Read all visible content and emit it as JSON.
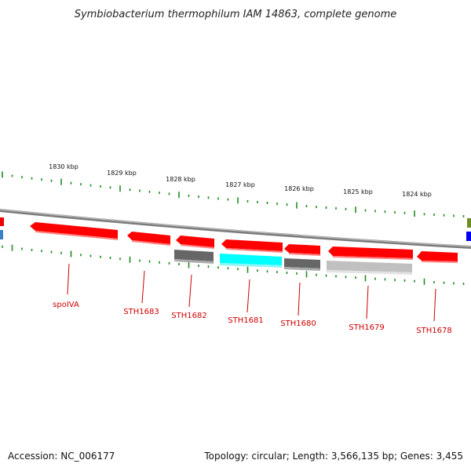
{
  "title": "Symbiobacterium thermophilum IAM 14863, complete genome",
  "footer": {
    "accession": "Accession: NC_006177",
    "topology": "Topology: circular; Length: 3,566,135 bp; Genes: 3,455"
  },
  "ruler_labels": [
    "1830 kbp",
    "1829 kbp",
    "1828 kbp",
    "1827 kbp",
    "1826 kbp",
    "1825 kbp",
    "1824 kbp"
  ],
  "genes": [
    {
      "name": "spoIVA"
    },
    {
      "name": "STH1683"
    },
    {
      "name": "STH1682"
    },
    {
      "name": "STH1681"
    },
    {
      "name": "STH1680"
    },
    {
      "name": "STH1679"
    },
    {
      "name": "STH1678"
    }
  ],
  "colors": {
    "forward_gene": "#ff0000",
    "reverse_gray_dark": "#666666",
    "reverse_cyan": "#00ffff",
    "reverse_gray_light": "#c0c0c0",
    "backbone": "#888888",
    "tick": "#228b22",
    "label": "#cc0000"
  }
}
